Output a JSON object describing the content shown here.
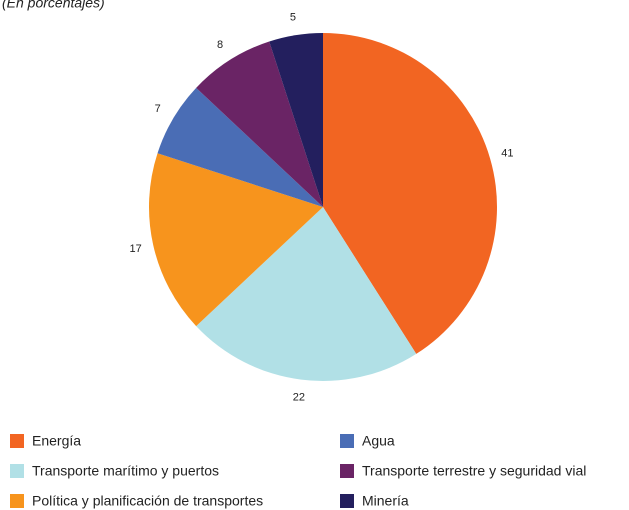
{
  "chart_data": {
    "type": "pie",
    "subtitle": "(En porcentajes)",
    "categories": [
      "Energía",
      "Transporte marítimo y puertos",
      "Política y planificación de transportes",
      "Agua",
      "Transporte terrestre y seguridad vial",
      "Minería"
    ],
    "values": [
      41,
      22,
      17,
      7,
      8,
      5
    ],
    "colors": [
      "#f26522",
      "#b1e0e6",
      "#f7941d",
      "#4a6db5",
      "#6a2465",
      "#231f5e"
    ]
  }
}
